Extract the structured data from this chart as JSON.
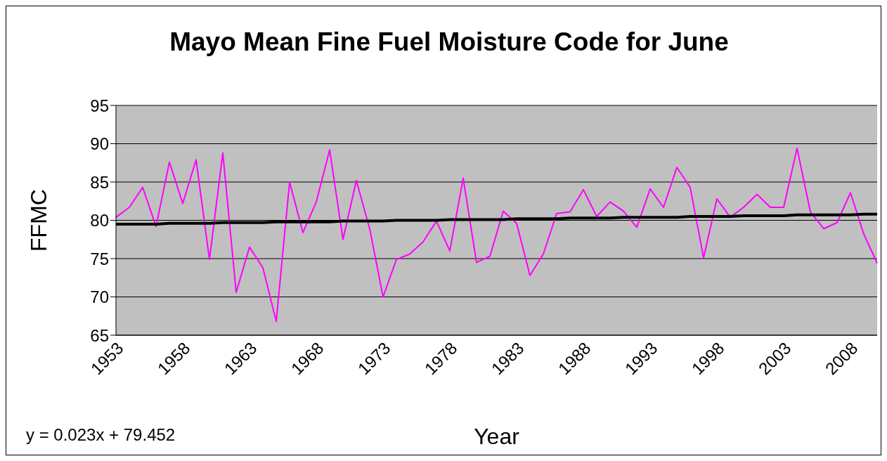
{
  "chart_data": {
    "type": "line",
    "title": "Mayo Mean Fine Fuel Moisture Code for June",
    "xlabel": "Year",
    "ylabel": "FFMC",
    "annotations": [
      "y = 0.023x + 79.452"
    ],
    "categories": [
      "1953",
      null,
      null,
      null,
      null,
      "1958",
      null,
      null,
      null,
      null,
      "1963",
      null,
      null,
      null,
      null,
      "1968",
      null,
      null,
      null,
      null,
      "1973",
      null,
      null,
      null,
      null,
      "1978",
      null,
      null,
      null,
      null,
      "1983",
      null,
      null,
      null,
      null,
      "1988",
      null,
      null,
      null,
      null,
      "1993",
      null,
      null,
      null,
      null,
      "1998",
      null,
      null,
      null,
      null,
      "2003",
      null,
      null,
      null,
      null,
      "2008",
      null,
      null
    ],
    "series": [
      {
        "color": "#ff00ff",
        "values": [
          80.4,
          81.7,
          84.3,
          79.2,
          87.6,
          82.2,
          87.9,
          74.9,
          88.8,
          70.6,
          76.5,
          73.8,
          66.8,
          85.0,
          78.4,
          82.4,
          89.2,
          77.5,
          85.2,
          78.9,
          70.0,
          74.9,
          75.6,
          77.2,
          79.9,
          76.0,
          85.5,
          74.5,
          75.3,
          81.2,
          79.6,
          72.8,
          75.6,
          80.9,
          81.1,
          84.0,
          80.5,
          82.4,
          81.2,
          79.1,
          84.1,
          81.7,
          86.9,
          84.3,
          75.1,
          82.8,
          80.4,
          81.7,
          83.4,
          81.7,
          81.7,
          89.4,
          81.1,
          78.9,
          79.7,
          83.6,
          78.2,
          74.4
        ]
      },
      {
        "color": "#000000",
        "values": [
          79.5,
          79.5,
          79.5,
          79.5,
          79.6,
          79.6,
          79.6,
          79.6,
          79.7,
          79.7,
          79.7,
          79.7,
          79.8,
          79.8,
          79.8,
          79.8,
          79.8,
          79.9,
          79.9,
          79.9,
          79.9,
          80.0,
          80.0,
          80.0,
          80.0,
          80.1,
          80.1,
          80.1,
          80.1,
          80.1,
          80.2,
          80.2,
          80.2,
          80.2,
          80.3,
          80.3,
          80.3,
          80.3,
          80.4,
          80.4,
          80.4,
          80.4,
          80.4,
          80.5,
          80.5,
          80.5,
          80.5,
          80.6,
          80.6,
          80.6,
          80.6,
          80.7,
          80.7,
          80.7,
          80.7,
          80.7,
          80.8,
          80.8
        ]
      }
    ],
    "ylim": [
      65,
      95
    ],
    "yticks": [
      65,
      70,
      75,
      80,
      85,
      90,
      95
    ],
    "grid": "y",
    "legend": false,
    "marker": "none",
    "line_style": "solid"
  }
}
